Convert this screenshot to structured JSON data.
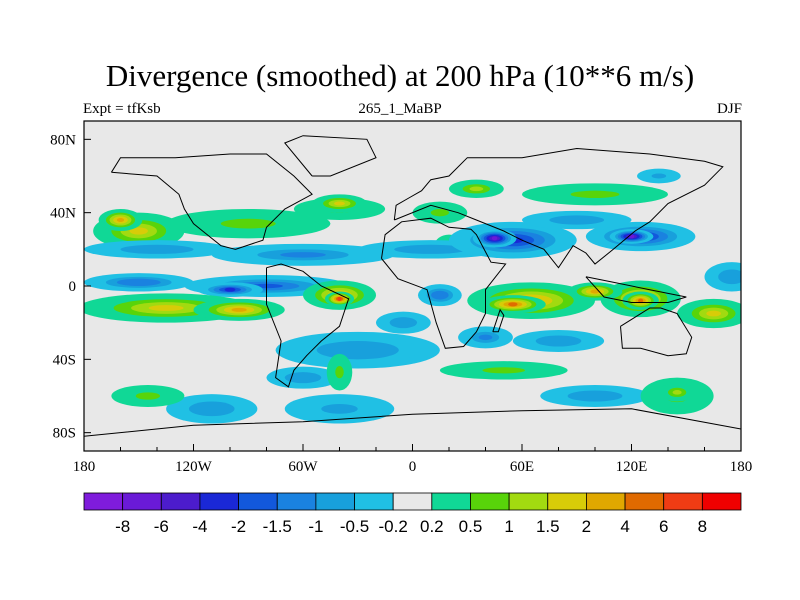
{
  "chart_data": {
    "type": "heatmap",
    "title": "Divergence (smoothed) at 200 hPa (10**6 m/s)",
    "left_label": "Expt = tfKsb",
    "center_label": "265_1_MaBP",
    "right_label": "DJF",
    "xlim": [
      -180,
      180
    ],
    "ylim": [
      -90,
      90
    ],
    "x_ticks": [
      {
        "value": -180,
        "label": "180"
      },
      {
        "value": -120,
        "label": "120W"
      },
      {
        "value": -60,
        "label": "60W"
      },
      {
        "value": 0,
        "label": "0"
      },
      {
        "value": 60,
        "label": "60E"
      },
      {
        "value": 120,
        "label": "120E"
      },
      {
        "value": 180,
        "label": "180"
      }
    ],
    "y_ticks": [
      {
        "value": 80,
        "label": "80N"
      },
      {
        "value": 40,
        "label": "40N"
      },
      {
        "value": 0,
        "label": "0"
      },
      {
        "value": -40,
        "label": "40S"
      },
      {
        "value": -80,
        "label": "80S"
      }
    ],
    "colorbar": {
      "colors": [
        "#7f1cdc",
        "#6a1ad7",
        "#4c1ccc",
        "#1a28d6",
        "#1258dc",
        "#1a82e0",
        "#18a0dc",
        "#20c0e4",
        "#e8e8e8",
        "#10d896",
        "#58d40a",
        "#a2da10",
        "#d8cc08",
        "#e0a800",
        "#e06a00",
        "#f03c14",
        "#f00000"
      ],
      "levels": [
        "-8",
        "-6",
        "-4",
        "-2",
        "-1.5",
        "-1",
        "-0.5",
        "-0.2",
        "0.2",
        "0.5",
        "1",
        "1.5",
        "2",
        "4",
        "6",
        "8"
      ]
    },
    "fields": [
      {
        "lon": -150,
        "lat": 30,
        "rlon": 25,
        "rlat": 10,
        "v": 1.6
      },
      {
        "lon": -160,
        "lat": 36,
        "rlon": 12,
        "rlat": 6,
        "v": 2.5
      },
      {
        "lon": -90,
        "lat": 34,
        "rlon": 45,
        "rlat": 8,
        "v": 0.8
      },
      {
        "lon": -40,
        "lat": 42,
        "rlon": 25,
        "rlat": 6,
        "v": 0.6
      },
      {
        "lon": -40,
        "lat": 45,
        "rlon": 15,
        "rlat": 5,
        "v": 1.5
      },
      {
        "lon": 15,
        "lat": 40,
        "rlon": 15,
        "rlat": 6,
        "v": 0.7
      },
      {
        "lon": 35,
        "lat": 53,
        "rlon": 15,
        "rlat": 5,
        "v": 1.2
      },
      {
        "lon": 100,
        "lat": 50,
        "rlon": 40,
        "rlat": 6,
        "v": 0.8
      },
      {
        "lon": 20,
        "lat": 22,
        "rlon": 8,
        "rlat": 6,
        "v": 0.8
      },
      {
        "lon": -140,
        "lat": 20,
        "rlon": 40,
        "rlat": 5,
        "v": -1.0
      },
      {
        "lon": -60,
        "lat": 17,
        "rlon": 50,
        "rlat": 6,
        "v": -1.2
      },
      {
        "lon": 10,
        "lat": 20,
        "rlon": 40,
        "rlat": 5,
        "v": -1.0
      },
      {
        "lon": 55,
        "lat": 25,
        "rlon": 35,
        "rlat": 10,
        "v": -3.5
      },
      {
        "lon": 45,
        "lat": 26,
        "rlon": 12,
        "rlat": 5,
        "v": -6.5
      },
      {
        "lon": 125,
        "lat": 27,
        "rlon": 30,
        "rlat": 8,
        "v": -3.5
      },
      {
        "lon": 120,
        "lat": 27,
        "rlon": 12,
        "rlat": 4,
        "v": -6.5
      },
      {
        "lon": 90,
        "lat": 36,
        "rlon": 30,
        "rlat": 5,
        "v": -1.0
      },
      {
        "lon": 135,
        "lat": 60,
        "rlon": 12,
        "rlat": 4,
        "v": -0.8
      },
      {
        "lon": -150,
        "lat": 2,
        "rlon": 30,
        "rlat": 5,
        "v": -1.5
      },
      {
        "lon": -80,
        "lat": 0,
        "rlon": 45,
        "rlat": 6,
        "v": -1.8
      },
      {
        "lon": -100,
        "lat": -2,
        "rlon": 18,
        "rlat": 4,
        "v": -2.5
      },
      {
        "lon": 15,
        "lat": -5,
        "rlon": 12,
        "rlat": 6,
        "v": -1.5
      },
      {
        "lon": 175,
        "lat": 5,
        "rlon": 15,
        "rlat": 8,
        "v": -1.0
      },
      {
        "lon": -135,
        "lat": -12,
        "rlon": 48,
        "rlat": 8,
        "v": 1.5
      },
      {
        "lon": -95,
        "lat": -13,
        "rlon": 25,
        "rlat": 6,
        "v": 2.0
      },
      {
        "lon": -40,
        "lat": -5,
        "rlon": 20,
        "rlat": 8,
        "v": 3.5
      },
      {
        "lon": -40,
        "lat": -7,
        "rlon": 8,
        "rlat": 4,
        "v": 6.5
      },
      {
        "lon": 65,
        "lat": -8,
        "rlon": 35,
        "rlat": 10,
        "v": 3.5
      },
      {
        "lon": 55,
        "lat": -10,
        "rlon": 18,
        "rlat": 5,
        "v": 4.5
      },
      {
        "lon": 125,
        "lat": -7,
        "rlon": 22,
        "rlat": 10,
        "v": 3.5
      },
      {
        "lon": 125,
        "lat": -8,
        "rlon": 10,
        "rlat": 5,
        "v": 5.0
      },
      {
        "lon": 100,
        "lat": -3,
        "rlon": 15,
        "rlat": 5,
        "v": 2.0
      },
      {
        "lon": 165,
        "lat": -15,
        "rlon": 20,
        "rlat": 8,
        "v": 1.5
      },
      {
        "lon": -5,
        "lat": -20,
        "rlon": 15,
        "rlat": 6,
        "v": -1.0
      },
      {
        "lon": 40,
        "lat": -28,
        "rlon": 15,
        "rlat": 6,
        "v": -1.2
      },
      {
        "lon": 80,
        "lat": -30,
        "rlon": 25,
        "rlat": 6,
        "v": -1.0
      },
      {
        "lon": -30,
        "lat": -35,
        "rlon": 45,
        "rlat": 10,
        "v": -1.0
      },
      {
        "lon": -60,
        "lat": -50,
        "rlon": 20,
        "rlat": 6,
        "v": -1.0
      },
      {
        "lon": 100,
        "lat": -60,
        "rlon": 30,
        "rlat": 6,
        "v": -1.0
      },
      {
        "lon": -110,
        "lat": -67,
        "rlon": 25,
        "rlat": 8,
        "v": -1.0
      },
      {
        "lon": -40,
        "lat": -67,
        "rlon": 30,
        "rlat": 8,
        "v": -0.9
      },
      {
        "lon": -145,
        "lat": -60,
        "rlon": 20,
        "rlat": 6,
        "v": 0.7
      },
      {
        "lon": -40,
        "lat": -47,
        "rlon": 7,
        "rlat": 10,
        "v": 0.7
      },
      {
        "lon": 50,
        "lat": -46,
        "rlon": 35,
        "rlat": 5,
        "v": 0.6
      },
      {
        "lon": 145,
        "lat": -60,
        "rlon": 20,
        "rlat": 10,
        "v": 0.7
      },
      {
        "lon": 145,
        "lat": -58,
        "rlon": 10,
        "rlat": 5,
        "v": 1.2
      }
    ]
  }
}
